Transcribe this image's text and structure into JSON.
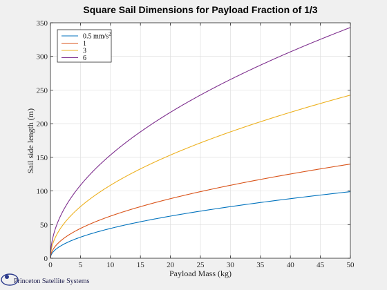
{
  "chart_data": {
    "type": "line",
    "title": "Square Sail Dimensions for Payload Fraction of 1/3",
    "xlabel": "Payload Mass (kg)",
    "ylabel": "Sail side length (m)",
    "xlim": [
      0,
      50
    ],
    "ylim": [
      0,
      350
    ],
    "xticks": [
      0,
      5,
      10,
      15,
      20,
      25,
      30,
      35,
      40,
      45,
      50
    ],
    "yticks": [
      0,
      50,
      100,
      150,
      200,
      250,
      300,
      350
    ],
    "grid": true,
    "legend_position": "top-left",
    "x": [
      0,
      0.5,
      1,
      2,
      3,
      5,
      7.5,
      10,
      12.5,
      15,
      17.5,
      20,
      22.5,
      25,
      27.5,
      30,
      32.5,
      35,
      37.5,
      40,
      42.5,
      45,
      47.5,
      50
    ],
    "series": [
      {
        "name": "0.5 mm/s",
        "name_sup": "2",
        "color": "#0072bd",
        "values": [
          0,
          9.9,
          14,
          19.8,
          24.2,
          31.3,
          38.3,
          44.3,
          49.5,
          54.2,
          58.6,
          62.6,
          66.4,
          70.0,
          73.4,
          76.7,
          79.8,
          82.8,
          85.7,
          88.5,
          91.3,
          93.9,
          96.5,
          99.0
        ]
      },
      {
        "name": "1",
        "color": "#d95319",
        "values": [
          0,
          14,
          19.8,
          28.0,
          34.3,
          44.3,
          54.2,
          62.6,
          70.0,
          76.7,
          82.8,
          88.5,
          93.9,
          99.0,
          103.8,
          108.4,
          112.9,
          117.1,
          121.2,
          125.2,
          129.1,
          132.8,
          136.4,
          140.0
        ]
      },
      {
        "name": "3",
        "color": "#edb120",
        "values": [
          0,
          24.2,
          34.3,
          48.5,
          59.4,
          76.7,
          93.9,
          108.4,
          121.2,
          132.8,
          143.4,
          153.3,
          162.6,
          171.5,
          179.8,
          187.8,
          195.5,
          202.9,
          210.0,
          216.9,
          223.6,
          230.0,
          236.3,
          242.5
        ]
      },
      {
        "name": "6",
        "color": "#7e2f8e",
        "values": [
          0,
          34.3,
          48.5,
          68.6,
          84.0,
          108.4,
          132.8,
          153.3,
          171.5,
          187.8,
          202.9,
          216.9,
          230.0,
          242.5,
          254.3,
          265.6,
          276.5,
          286.9,
          297.0,
          306.7,
          316.2,
          325.3,
          334.2,
          343.0
        ]
      }
    ]
  },
  "logo": {
    "company": "Princeton Satellite Systems"
  }
}
